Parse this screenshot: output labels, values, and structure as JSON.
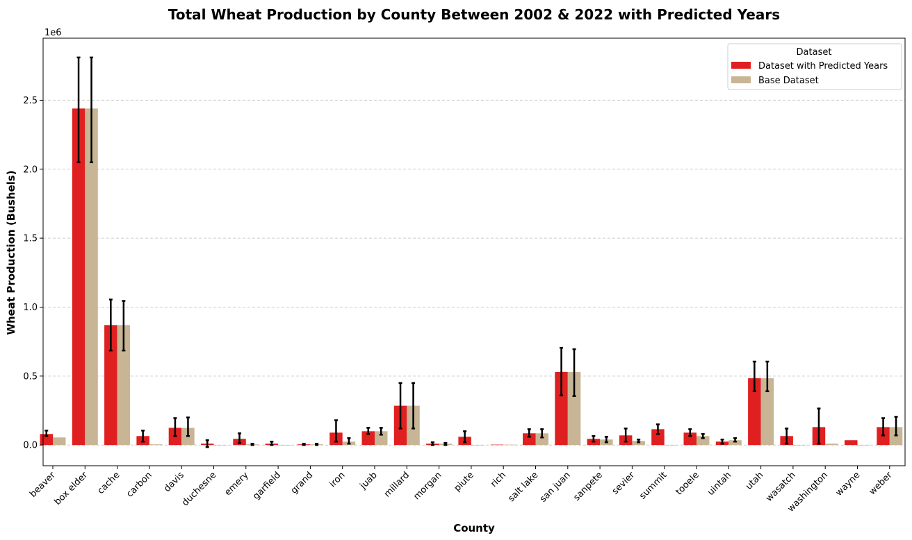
{
  "chart_data": {
    "type": "bar",
    "title": "Total Wheat Production by County Between 2002 & 2022 with Predicted Years",
    "xlabel": "County",
    "ylabel": "Wheat Production (Bushels)",
    "y_scale_label": "1e6",
    "ylim": [
      -150000,
      2950000
    ],
    "yticks": [
      0.0,
      0.5,
      1.0,
      1.5,
      2.0,
      2.5
    ],
    "ytick_labels": [
      "0.0",
      "0.5",
      "1.0",
      "1.5",
      "2.0",
      "2.5"
    ],
    "grid": "y-dashed",
    "legend": {
      "title": "Dataset",
      "placement": "top-right"
    },
    "categories": [
      "beaver",
      "box elder",
      "cache",
      "carbon",
      "davis",
      "duchesne",
      "emery",
      "garfield",
      "grand",
      "iron",
      "juab",
      "millard",
      "morgan",
      "piute",
      "rich",
      "salt lake",
      "san juan",
      "sanpete",
      "sevier",
      "summit",
      "tooele",
      "uintah",
      "utah",
      "wasatch",
      "washington",
      "wayne",
      "weber"
    ],
    "series": [
      {
        "name": "Dataset with Predicted Years",
        "color": "#e02020",
        "values": [
          80000,
          2440000,
          870000,
          65000,
          125000,
          10000,
          45000,
          10000,
          5000,
          90000,
          100000,
          285000,
          10000,
          60000,
          3000,
          85000,
          530000,
          45000,
          70000,
          115000,
          90000,
          25000,
          485000,
          65000,
          130000,
          35000,
          130000
        ],
        "err_low": [
          65000,
          2050000,
          685000,
          25000,
          65000,
          -15000,
          15000,
          0,
          0,
          25000,
          80000,
          120000,
          0,
          20000,
          3000,
          60000,
          360000,
          25000,
          25000,
          80000,
          65000,
          10000,
          390000,
          10000,
          10000,
          35000,
          70000
        ],
        "err_high": [
          105000,
          2810000,
          1055000,
          105000,
          195000,
          35000,
          85000,
          25000,
          10000,
          180000,
          125000,
          450000,
          20000,
          100000,
          3000,
          115000,
          705000,
          65000,
          120000,
          150000,
          115000,
          40000,
          605000,
          120000,
          265000,
          35000,
          195000
        ]
      },
      {
        "name": "Base Dataset",
        "color": "#c8b595",
        "values": [
          55000,
          2440000,
          870000,
          5000,
          125000,
          0,
          5000,
          0,
          5000,
          25000,
          100000,
          285000,
          10000,
          0,
          3000,
          85000,
          530000,
          40000,
          30000,
          0,
          65000,
          35000,
          485000,
          0,
          10000,
          0,
          130000
        ],
        "err_low": [
          55000,
          2050000,
          685000,
          5000,
          65000,
          0,
          0,
          0,
          0,
          10000,
          75000,
          120000,
          0,
          0,
          3000,
          55000,
          355000,
          20000,
          20000,
          0,
          50000,
          25000,
          390000,
          0,
          10000,
          0,
          70000
        ],
        "err_high": [
          55000,
          2810000,
          1045000,
          5000,
          200000,
          0,
          10000,
          0,
          10000,
          50000,
          125000,
          450000,
          15000,
          0,
          3000,
          115000,
          695000,
          60000,
          40000,
          0,
          80000,
          50000,
          605000,
          0,
          10000,
          0,
          205000
        ]
      }
    ]
  }
}
